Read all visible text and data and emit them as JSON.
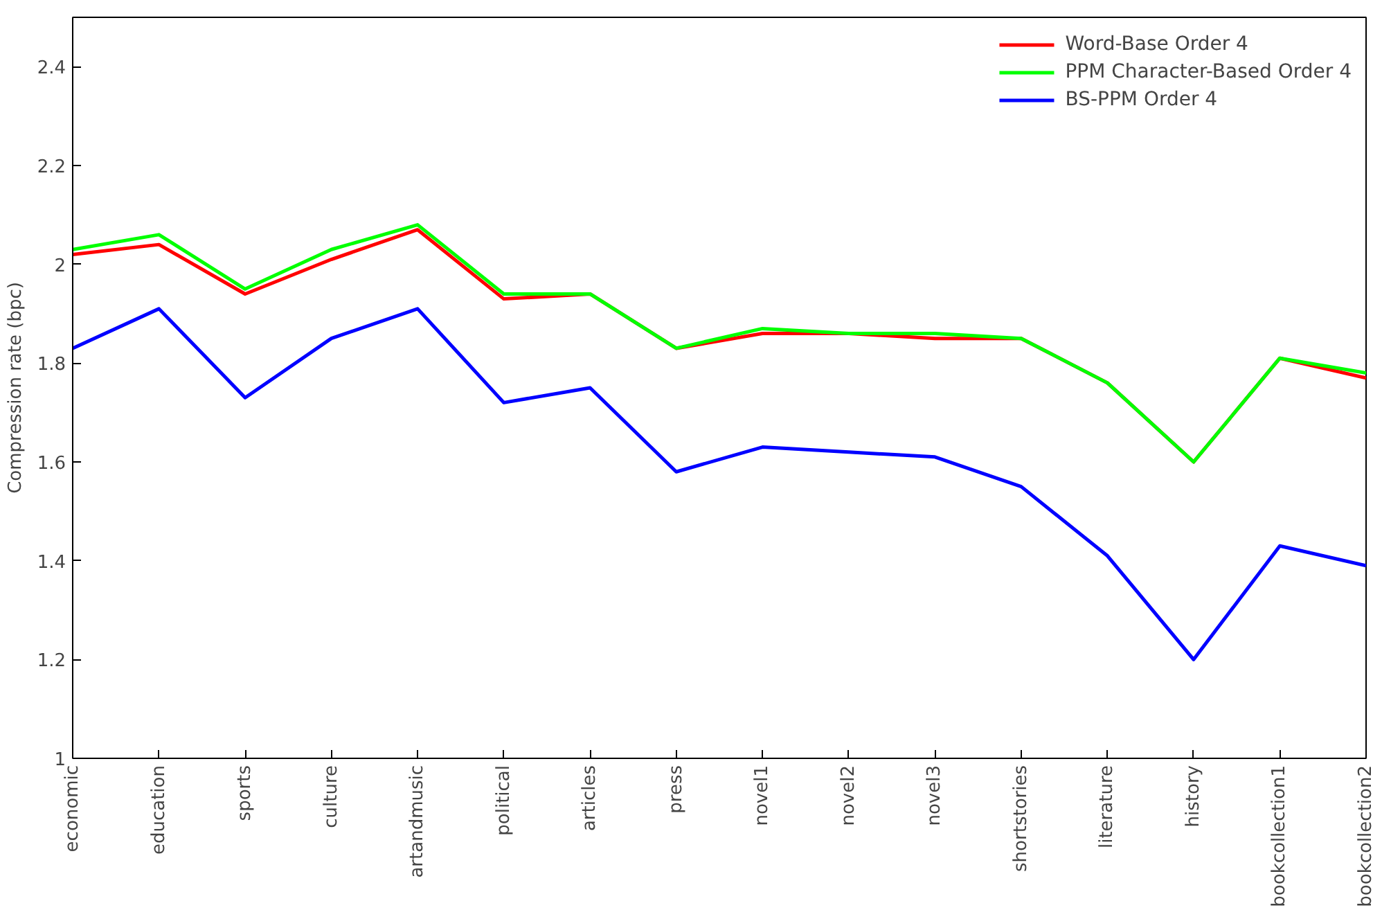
{
  "chart_data": {
    "type": "line",
    "ylabel": "Compression rate (bpc)",
    "categories": [
      "economic",
      "education",
      "sports",
      "culture",
      "artandmusic",
      "political",
      "articles",
      "press",
      "novel1",
      "novel2",
      "novel3",
      "shortstories",
      "literature",
      "history",
      "bookcollection1",
      "bookcollection2"
    ],
    "series": [
      {
        "name": "Word-Base Order 4",
        "color": "#ff0000",
        "values": [
          2.02,
          2.04,
          1.94,
          2.01,
          2.07,
          1.93,
          1.94,
          1.83,
          1.86,
          1.86,
          1.85,
          1.85,
          1.76,
          1.6,
          1.81,
          1.77
        ]
      },
      {
        "name": "PPM Character-Based Order 4",
        "color": "#00ff00",
        "values": [
          2.03,
          2.06,
          1.95,
          2.03,
          2.08,
          1.94,
          1.94,
          1.83,
          1.87,
          1.86,
          1.86,
          1.85,
          1.76,
          1.6,
          1.81,
          1.78
        ]
      },
      {
        "name": "BS-PPM Order 4",
        "color": "#0000ff",
        "values": [
          1.83,
          1.91,
          1.73,
          1.85,
          1.91,
          1.72,
          1.75,
          1.58,
          1.63,
          1.62,
          1.61,
          1.55,
          1.41,
          1.2,
          1.43,
          1.39
        ]
      }
    ],
    "ylim": [
      1,
      2.5
    ],
    "yticks": [
      1,
      1.2,
      1.4,
      1.6,
      1.8,
      2,
      2.2,
      2.4
    ],
    "grid": false,
    "legend": "top right",
    "marker": "none",
    "line_style": "solid"
  }
}
